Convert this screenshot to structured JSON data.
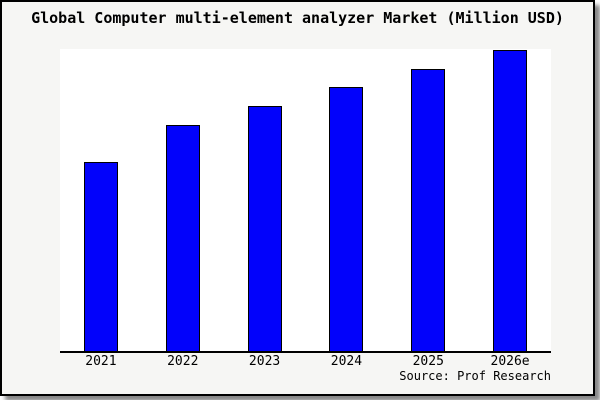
{
  "chart_data": {
    "type": "bar",
    "title": "Global Computer multi-element analyzer Market (Million USD)",
    "categories": [
      "2021",
      "2022",
      "2023",
      "2024",
      "2025",
      "2026e"
    ],
    "values": [
      189,
      226,
      245,
      264,
      282,
      301
    ],
    "value_units": "relative units estimated from bar heights (y-axis not shown)",
    "xlabel": "",
    "ylabel": "",
    "ylim": [
      0,
      302
    ],
    "grid": false,
    "legend": null,
    "bar_color": "#0202fb",
    "bar_border_color": "#000000",
    "axis_color": "#000000",
    "plot_bg": "#ffffff",
    "canvas_bg": "#f6f6f4"
  },
  "source_label": "Source: Prof Research"
}
